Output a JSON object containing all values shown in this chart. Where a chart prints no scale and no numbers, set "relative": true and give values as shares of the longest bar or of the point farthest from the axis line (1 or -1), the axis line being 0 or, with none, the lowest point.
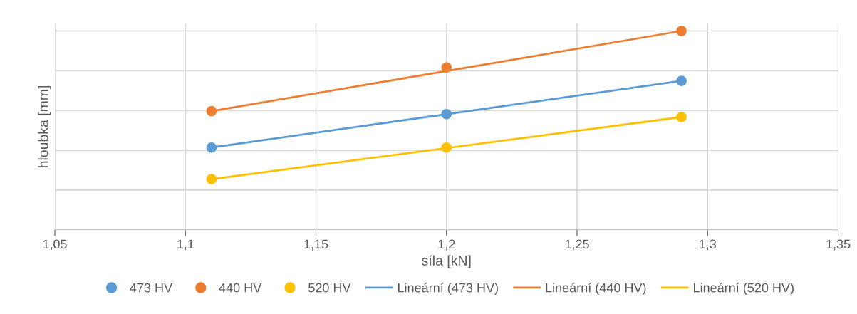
{
  "chart_data": {
    "type": "scatter",
    "xlabel": "síla [kN]",
    "ylabel": "hloubka [mm]",
    "relative": true,
    "xlim": [
      1.05,
      1.35
    ],
    "xticks": [
      {
        "value": 1.05,
        "label": "1,05"
      },
      {
        "value": 1.1,
        "label": "1,1"
      },
      {
        "value": 1.15,
        "label": "1,15"
      },
      {
        "value": 1.2,
        "label": "1,2"
      },
      {
        "value": 1.25,
        "label": "1,25"
      },
      {
        "value": 1.3,
        "label": "1,3"
      },
      {
        "value": 1.35,
        "label": "1,35"
      }
    ],
    "grid": true,
    "legend": "bottom",
    "series": [
      {
        "name": "473 HV",
        "marker": "circle",
        "color": "#5b9bd5",
        "x": [
          1.11,
          1.2,
          1.29
        ],
        "values": [
          0.414,
          0.582,
          0.749
        ]
      },
      {
        "name": "440 HV",
        "marker": "circle",
        "color": "#ed7d31",
        "x": [
          1.11,
          1.2,
          1.29
        ],
        "values": [
          0.597,
          0.817,
          1
        ]
      },
      {
        "name": "520 HV",
        "marker": "circle",
        "color": "#ffc000",
        "x": [
          1.11,
          1.2,
          1.29
        ],
        "values": [
          0.255,
          0.414,
          0.567
        ]
      },
      {
        "name": "Lineární (473 HV)",
        "type": "line",
        "marker": "none",
        "color": "#5b9bd5",
        "x": [
          1.11,
          1.29
        ],
        "values": [
          0.414,
          0.749
        ]
      },
      {
        "name": "Lineární (440 HV)",
        "type": "line",
        "marker": "none",
        "color": "#ed7d31",
        "x": [
          1.11,
          1.29
        ],
        "values": [
          0.597,
          1
        ]
      },
      {
        "name": "Lineární (520 HV)",
        "type": "line",
        "marker": "none",
        "color": "#ffc000",
        "x": [
          1.11,
          1.29
        ],
        "values": [
          0.255,
          0.567
        ]
      }
    ]
  }
}
